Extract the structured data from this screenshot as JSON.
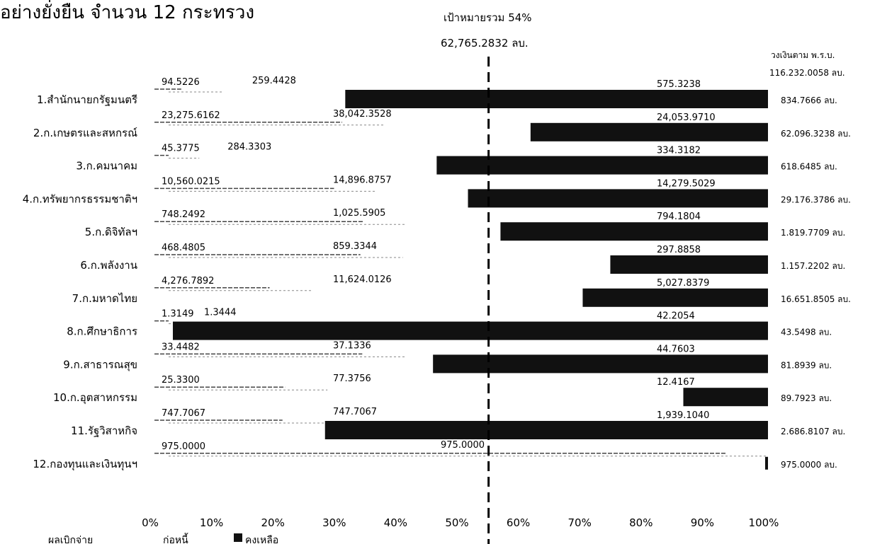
{
  "header": {
    "title": "อย่างยั่งยืน จำนวน 12 กระทรวง",
    "target_label": "เป้าหมายรวม 54%",
    "target_amount": "62,765.2832 ลบ.",
    "budget_header": "วงเงินตาม พ.ร.บ.",
    "budget_total": "116.232.0058 ลบ."
  },
  "legend": {
    "paid": "ผลเบิกจ่าย",
    "obligated": "ก่อหนี้",
    "remaining": "คงเหลือ"
  },
  "colors": {
    "bar": "#111111",
    "line": "#000000",
    "text": "#000000"
  },
  "chart_data": {
    "type": "bar",
    "orientation": "horizontal",
    "x_ticks": [
      "0%",
      "10%",
      "20%",
      "30%",
      "40%",
      "50%",
      "60%",
      "70%",
      "80%",
      "90%",
      "100%"
    ],
    "xlim": [
      0,
      100
    ],
    "target_percent": 54,
    "categories": [
      "1.สำนักนายกรัฐมนตรี",
      "2.ก.เกษตรและสหกรณ์",
      "3.ก.คมนาคม",
      "4.ก.ทรัพยากรธรรมชาติฯ",
      "5.ก.ดิจิทัลฯ",
      "6.ก.พลังงาน",
      "7.ก.มหาดไทย",
      "8.ก.ศึกษาธิการ",
      "9.ก.สาธารณสุข",
      "10.ก.อุตสาหกรรม",
      "11.รัฐวิสาหกิจ",
      "12.กองทุนและเงินทุนฯ"
    ],
    "paid_labels": [
      "94.5226",
      "23,275.6162",
      "45.3775",
      "10,560.0215",
      "748.2492",
      "468.4805",
      "4,276.7892",
      "1.3149",
      "33.4482",
      "25.3300",
      "747.7067",
      "975.0000"
    ],
    "obligated_labels": [
      "259.4428",
      "38,042.3528",
      "284.3303",
      "14,896.8757",
      "1,025.5905",
      "859.3344",
      "11,624.0126",
      "1.3444",
      "37.1336",
      "77.3756",
      "747.7067",
      "975.0000"
    ],
    "remaining_labels": [
      "575.3238",
      "24,053.9710",
      "334.3182",
      "14,279.5029",
      "794.1804",
      "297.8858",
      "5,027.8379",
      "42.2054",
      "44.7603",
      "12.4167",
      "1,939.1040",
      ""
    ],
    "budget_labels": [
      "834.7666 ลบ.",
      "62.096.3238 ลบ.",
      "618.6485 ลบ.",
      "29.176.3786 ลบ.",
      "1.819.7709 ลบ.",
      "1.157.2202 ลบ.",
      "16.651.8505 ลบ.",
      "43.5498 ลบ.",
      "81.8939 ลบ.",
      "89.7923 ลบ.",
      "2.686.8107 ลบ.",
      "975.0000 ลบ."
    ],
    "paid_percent": [
      11.3,
      37.5,
      7.3,
      36.2,
      41.1,
      40.5,
      25.7,
      3.0,
      40.8,
      28.2,
      27.8,
      100
    ],
    "remaining_start_percent": [
      31.1,
      61.3,
      46.0,
      51.1,
      56.4,
      74.3,
      69.8,
      3.0,
      45.4,
      86.2,
      27.8,
      100
    ]
  }
}
